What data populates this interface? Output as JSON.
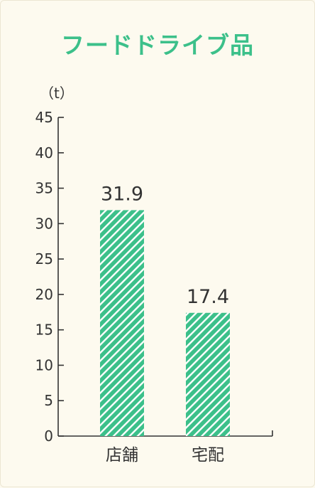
{
  "title": "フードドライブ品",
  "colors": {
    "bar": "#3cc08a",
    "title": "#3cc08a",
    "background": "#fdfaef",
    "axis": "#333333"
  },
  "chart_data": {
    "type": "bar",
    "title": "フードドライブ品",
    "ylabel": "（t）",
    "xlabel": "",
    "categories": [
      "店舗",
      "宅配"
    ],
    "values": [
      31.9,
      17.4
    ],
    "data_labels": [
      "31.9",
      "17.4"
    ],
    "ylim": [
      0,
      45
    ],
    "yticks": [
      "0",
      "5",
      "10",
      "15",
      "20",
      "25",
      "30",
      "35",
      "40",
      "45"
    ],
    "bar_pattern": "diagonal-stripes",
    "grid": false,
    "legend": "none"
  }
}
